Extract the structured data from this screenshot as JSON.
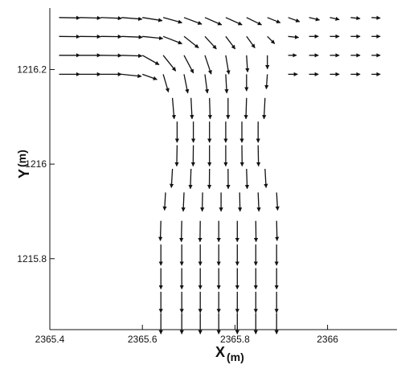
{
  "chart_data": {
    "type": "vector-field",
    "xlabel": "X",
    "xunit": "(m)",
    "ylabel": "Y",
    "yunit": "(m)",
    "xlim": [
      2365.4,
      2366.15
    ],
    "ylim": [
      1215.65,
      1216.33
    ],
    "xticks": [
      {
        "value": 2365.4,
        "label": "2365.4"
      },
      {
        "value": 2365.6,
        "label": "2365.6"
      },
      {
        "value": 2365.8,
        "label": "2365.8"
      },
      {
        "value": 2366.0,
        "label": "2366"
      }
    ],
    "yticks": [
      {
        "value": 1215.8,
        "label": "1215.8"
      },
      {
        "value": 1216.0,
        "label": "1216"
      },
      {
        "value": 1216.2,
        "label": "1216.2"
      }
    ],
    "grid": false,
    "legend": "none",
    "arrow_color": "#111111",
    "vectors": [
      {
        "x": 2365.42,
        "y": 1216.31,
        "u": 1.0,
        "v": -0.02
      },
      {
        "x": 2365.465,
        "y": 1216.31,
        "u": 1.0,
        "v": -0.03
      },
      {
        "x": 2365.51,
        "y": 1216.31,
        "u": 1.0,
        "v": -0.04
      },
      {
        "x": 2365.555,
        "y": 1216.31,
        "u": 0.98,
        "v": -0.08
      },
      {
        "x": 2365.6,
        "y": 1216.31,
        "u": 0.95,
        "v": -0.15
      },
      {
        "x": 2365.645,
        "y": 1216.31,
        "u": 0.9,
        "v": -0.25
      },
      {
        "x": 2365.69,
        "y": 1216.31,
        "u": 0.85,
        "v": -0.32
      },
      {
        "x": 2365.735,
        "y": 1216.31,
        "u": 0.8,
        "v": -0.35
      },
      {
        "x": 2365.78,
        "y": 1216.31,
        "u": 0.78,
        "v": -0.35
      },
      {
        "x": 2365.825,
        "y": 1216.31,
        "u": 0.72,
        "v": -0.35
      },
      {
        "x": 2365.87,
        "y": 1216.31,
        "u": 0.62,
        "v": -0.25
      },
      {
        "x": 2365.915,
        "y": 1216.31,
        "u": 0.55,
        "v": -0.2
      },
      {
        "x": 2365.96,
        "y": 1216.31,
        "u": 0.5,
        "v": -0.12
      },
      {
        "x": 2366.005,
        "y": 1216.31,
        "u": 0.45,
        "v": -0.1
      },
      {
        "x": 2366.05,
        "y": 1216.31,
        "u": 0.45,
        "v": -0.05
      },
      {
        "x": 2366.095,
        "y": 1216.31,
        "u": 0.42,
        "v": -0.03
      },
      {
        "x": 2365.42,
        "y": 1216.27,
        "u": 1.0,
        "v": -0.01
      },
      {
        "x": 2365.465,
        "y": 1216.27,
        "u": 1.0,
        "v": -0.01
      },
      {
        "x": 2365.51,
        "y": 1216.27,
        "u": 1.0,
        "v": -0.01
      },
      {
        "x": 2365.555,
        "y": 1216.27,
        "u": 1.0,
        "v": -0.04
      },
      {
        "x": 2365.6,
        "y": 1216.27,
        "u": 0.98,
        "v": -0.1
      },
      {
        "x": 2365.645,
        "y": 1216.27,
        "u": 0.9,
        "v": -0.35
      },
      {
        "x": 2365.69,
        "y": 1216.27,
        "u": 0.7,
        "v": -0.55
      },
      {
        "x": 2365.735,
        "y": 1216.27,
        "u": 0.55,
        "v": -0.6
      },
      {
        "x": 2365.78,
        "y": 1216.27,
        "u": 0.45,
        "v": -0.6
      },
      {
        "x": 2365.825,
        "y": 1216.27,
        "u": 0.4,
        "v": -0.55
      },
      {
        "x": 2365.87,
        "y": 1216.27,
        "u": 0.35,
        "v": -0.35
      },
      {
        "x": 2365.915,
        "y": 1216.27,
        "u": 0.5,
        "v": -0.05
      },
      {
        "x": 2365.96,
        "y": 1216.27,
        "u": 0.45,
        "v": 0.0
      },
      {
        "x": 2366.005,
        "y": 1216.27,
        "u": 0.45,
        "v": 0.0
      },
      {
        "x": 2366.05,
        "y": 1216.27,
        "u": 0.45,
        "v": 0.0
      },
      {
        "x": 2366.095,
        "y": 1216.27,
        "u": 0.42,
        "v": 0.0
      },
      {
        "x": 2365.42,
        "y": 1216.23,
        "u": 1.0,
        "v": 0.0
      },
      {
        "x": 2365.465,
        "y": 1216.23,
        "u": 1.0,
        "v": 0.0
      },
      {
        "x": 2365.51,
        "y": 1216.23,
        "u": 1.0,
        "v": -0.01
      },
      {
        "x": 2365.555,
        "y": 1216.23,
        "u": 0.98,
        "v": -0.03
      },
      {
        "x": 2365.6,
        "y": 1216.23,
        "u": 0.8,
        "v": -0.45
      },
      {
        "x": 2365.645,
        "y": 1216.23,
        "u": 0.6,
        "v": -0.75
      },
      {
        "x": 2365.69,
        "y": 1216.23,
        "u": 0.45,
        "v": -0.85
      },
      {
        "x": 2365.735,
        "y": 1216.23,
        "u": 0.3,
        "v": -0.9
      },
      {
        "x": 2365.78,
        "y": 1216.23,
        "u": 0.15,
        "v": -0.9
      },
      {
        "x": 2365.825,
        "y": 1216.23,
        "u": 0.05,
        "v": -0.8
      },
      {
        "x": 2365.87,
        "y": 1216.23,
        "u": 0.0,
        "v": -0.65
      },
      {
        "x": 2365.915,
        "y": 1216.23,
        "u": 0.4,
        "v": 0.0
      },
      {
        "x": 2365.96,
        "y": 1216.23,
        "u": 0.45,
        "v": 0.0
      },
      {
        "x": 2366.005,
        "y": 1216.23,
        "u": 0.45,
        "v": 0.0
      },
      {
        "x": 2366.05,
        "y": 1216.23,
        "u": 0.45,
        "v": 0.0
      },
      {
        "x": 2366.095,
        "y": 1216.23,
        "u": 0.42,
        "v": 0.0
      },
      {
        "x": 2365.42,
        "y": 1216.19,
        "u": 1.0,
        "v": 0.0
      },
      {
        "x": 2365.465,
        "y": 1216.19,
        "u": 1.0,
        "v": 0.0
      },
      {
        "x": 2365.51,
        "y": 1216.19,
        "u": 1.0,
        "v": 0.0
      },
      {
        "x": 2365.555,
        "y": 1216.19,
        "u": 0.95,
        "v": -0.1
      },
      {
        "x": 2365.6,
        "y": 1216.19,
        "u": 0.7,
        "v": -0.25
      },
      {
        "x": 2365.645,
        "y": 1216.19,
        "u": 0.25,
        "v": -0.85
      },
      {
        "x": 2365.69,
        "y": 1216.19,
        "u": 0.18,
        "v": -0.9
      },
      {
        "x": 2365.735,
        "y": 1216.19,
        "u": 0.12,
        "v": -0.9
      },
      {
        "x": 2365.78,
        "y": 1216.19,
        "u": 0.05,
        "v": -0.9
      },
      {
        "x": 2365.825,
        "y": 1216.19,
        "u": 0.0,
        "v": -0.8
      },
      {
        "x": 2365.87,
        "y": 1216.19,
        "u": -0.05,
        "v": -0.7
      },
      {
        "x": 2365.915,
        "y": 1216.19,
        "u": 0.45,
        "v": 0.0
      },
      {
        "x": 2365.96,
        "y": 1216.19,
        "u": 0.45,
        "v": 0.0
      },
      {
        "x": 2366.005,
        "y": 1216.19,
        "u": 0.45,
        "v": 0.0
      },
      {
        "x": 2366.05,
        "y": 1216.19,
        "u": 0.45,
        "v": 0.0
      },
      {
        "x": 2366.095,
        "y": 1216.19,
        "u": 0.42,
        "v": 0.0
      },
      {
        "x": 2365.665,
        "y": 1216.14,
        "u": 0.08,
        "v": -1.0
      },
      {
        "x": 2365.705,
        "y": 1216.14,
        "u": 0.05,
        "v": -1.0
      },
      {
        "x": 2365.745,
        "y": 1216.14,
        "u": 0.03,
        "v": -1.0
      },
      {
        "x": 2365.785,
        "y": 1216.14,
        "u": 0.0,
        "v": -1.0
      },
      {
        "x": 2365.825,
        "y": 1216.14,
        "u": -0.03,
        "v": -1.0
      },
      {
        "x": 2365.865,
        "y": 1216.14,
        "u": -0.05,
        "v": -1.0
      },
      {
        "x": 2365.675,
        "y": 1216.09,
        "u": 0.0,
        "v": -1.0
      },
      {
        "x": 2365.71,
        "y": 1216.09,
        "u": 0.0,
        "v": -1.0
      },
      {
        "x": 2365.745,
        "y": 1216.09,
        "u": 0.0,
        "v": -1.0
      },
      {
        "x": 2365.78,
        "y": 1216.09,
        "u": 0.0,
        "v": -1.0
      },
      {
        "x": 2365.815,
        "y": 1216.09,
        "u": 0.0,
        "v": -1.0
      },
      {
        "x": 2365.85,
        "y": 1216.09,
        "u": 0.0,
        "v": -1.0
      },
      {
        "x": 2365.675,
        "y": 1216.04,
        "u": -0.02,
        "v": -1.0
      },
      {
        "x": 2365.71,
        "y": 1216.04,
        "u": -0.01,
        "v": -1.0
      },
      {
        "x": 2365.745,
        "y": 1216.04,
        "u": 0.0,
        "v": -1.0
      },
      {
        "x": 2365.78,
        "y": 1216.04,
        "u": 0.0,
        "v": -1.0
      },
      {
        "x": 2365.815,
        "y": 1216.04,
        "u": 0.01,
        "v": -1.0
      },
      {
        "x": 2365.85,
        "y": 1216.04,
        "u": 0.02,
        "v": -1.0
      },
      {
        "x": 2365.665,
        "y": 1215.99,
        "u": -0.05,
        "v": -0.9
      },
      {
        "x": 2365.705,
        "y": 1215.99,
        "u": -0.03,
        "v": -0.95
      },
      {
        "x": 2365.745,
        "y": 1215.99,
        "u": -0.01,
        "v": -0.95
      },
      {
        "x": 2365.785,
        "y": 1215.99,
        "u": 0.01,
        "v": -0.95
      },
      {
        "x": 2365.825,
        "y": 1215.99,
        "u": 0.03,
        "v": -0.95
      },
      {
        "x": 2365.865,
        "y": 1215.99,
        "u": 0.05,
        "v": -0.9
      },
      {
        "x": 2365.65,
        "y": 1215.94,
        "u": -0.05,
        "v": -0.85
      },
      {
        "x": 2365.69,
        "y": 1215.94,
        "u": -0.04,
        "v": -0.9
      },
      {
        "x": 2365.73,
        "y": 1215.94,
        "u": -0.02,
        "v": -0.9
      },
      {
        "x": 2365.77,
        "y": 1215.94,
        "u": 0.0,
        "v": -0.9
      },
      {
        "x": 2365.81,
        "y": 1215.94,
        "u": 0.02,
        "v": -0.9
      },
      {
        "x": 2365.85,
        "y": 1215.94,
        "u": 0.04,
        "v": -0.9
      },
      {
        "x": 2365.89,
        "y": 1215.94,
        "u": 0.05,
        "v": -0.85
      },
      {
        "x": 2365.64,
        "y": 1215.88,
        "u": -0.03,
        "v": -0.95
      },
      {
        "x": 2365.685,
        "y": 1215.88,
        "u": -0.02,
        "v": -1.0
      },
      {
        "x": 2365.725,
        "y": 1215.88,
        "u": -0.01,
        "v": -1.0
      },
      {
        "x": 2365.765,
        "y": 1215.88,
        "u": 0.0,
        "v": -1.0
      },
      {
        "x": 2365.805,
        "y": 1215.88,
        "u": 0.0,
        "v": -1.0
      },
      {
        "x": 2365.845,
        "y": 1215.88,
        "u": 0.01,
        "v": -1.0
      },
      {
        "x": 2365.89,
        "y": 1215.88,
        "u": 0.02,
        "v": -0.95
      },
      {
        "x": 2365.64,
        "y": 1215.83,
        "u": 0.0,
        "v": -1.0
      },
      {
        "x": 2365.685,
        "y": 1215.83,
        "u": 0.0,
        "v": -1.0
      },
      {
        "x": 2365.725,
        "y": 1215.83,
        "u": 0.0,
        "v": -1.0
      },
      {
        "x": 2365.765,
        "y": 1215.83,
        "u": 0.0,
        "v": -1.0
      },
      {
        "x": 2365.805,
        "y": 1215.83,
        "u": 0.0,
        "v": -1.0
      },
      {
        "x": 2365.845,
        "y": 1215.83,
        "u": 0.0,
        "v": -1.0
      },
      {
        "x": 2365.89,
        "y": 1215.83,
        "u": 0.0,
        "v": -1.0
      },
      {
        "x": 2365.64,
        "y": 1215.78,
        "u": 0.0,
        "v": -1.0
      },
      {
        "x": 2365.685,
        "y": 1215.78,
        "u": 0.0,
        "v": -1.0
      },
      {
        "x": 2365.725,
        "y": 1215.78,
        "u": 0.0,
        "v": -1.0
      },
      {
        "x": 2365.765,
        "y": 1215.78,
        "u": 0.0,
        "v": -1.0
      },
      {
        "x": 2365.805,
        "y": 1215.78,
        "u": 0.0,
        "v": -1.0
      },
      {
        "x": 2365.845,
        "y": 1215.78,
        "u": 0.0,
        "v": -1.0
      },
      {
        "x": 2365.89,
        "y": 1215.78,
        "u": 0.0,
        "v": -1.0
      },
      {
        "x": 2365.64,
        "y": 1215.73,
        "u": 0.0,
        "v": -1.0
      },
      {
        "x": 2365.685,
        "y": 1215.73,
        "u": 0.0,
        "v": -1.0
      },
      {
        "x": 2365.725,
        "y": 1215.73,
        "u": 0.0,
        "v": -1.0
      },
      {
        "x": 2365.765,
        "y": 1215.73,
        "u": 0.0,
        "v": -1.0
      },
      {
        "x": 2365.805,
        "y": 1215.73,
        "u": 0.0,
        "v": -1.0
      },
      {
        "x": 2365.845,
        "y": 1215.73,
        "u": 0.0,
        "v": -1.0
      },
      {
        "x": 2365.89,
        "y": 1215.73,
        "u": 0.0,
        "v": -1.0
      },
      {
        "x": 2365.64,
        "y": 1215.685,
        "u": 0.0,
        "v": -1.0
      },
      {
        "x": 2365.685,
        "y": 1215.685,
        "u": 0.0,
        "v": -1.0
      },
      {
        "x": 2365.725,
        "y": 1215.685,
        "u": 0.0,
        "v": -1.0
      },
      {
        "x": 2365.765,
        "y": 1215.685,
        "u": 0.0,
        "v": -1.0
      },
      {
        "x": 2365.805,
        "y": 1215.685,
        "u": 0.0,
        "v": -1.0
      },
      {
        "x": 2365.845,
        "y": 1215.685,
        "u": 0.0,
        "v": -1.0
      },
      {
        "x": 2365.89,
        "y": 1215.685,
        "u": 0.0,
        "v": -1.0
      }
    ]
  }
}
